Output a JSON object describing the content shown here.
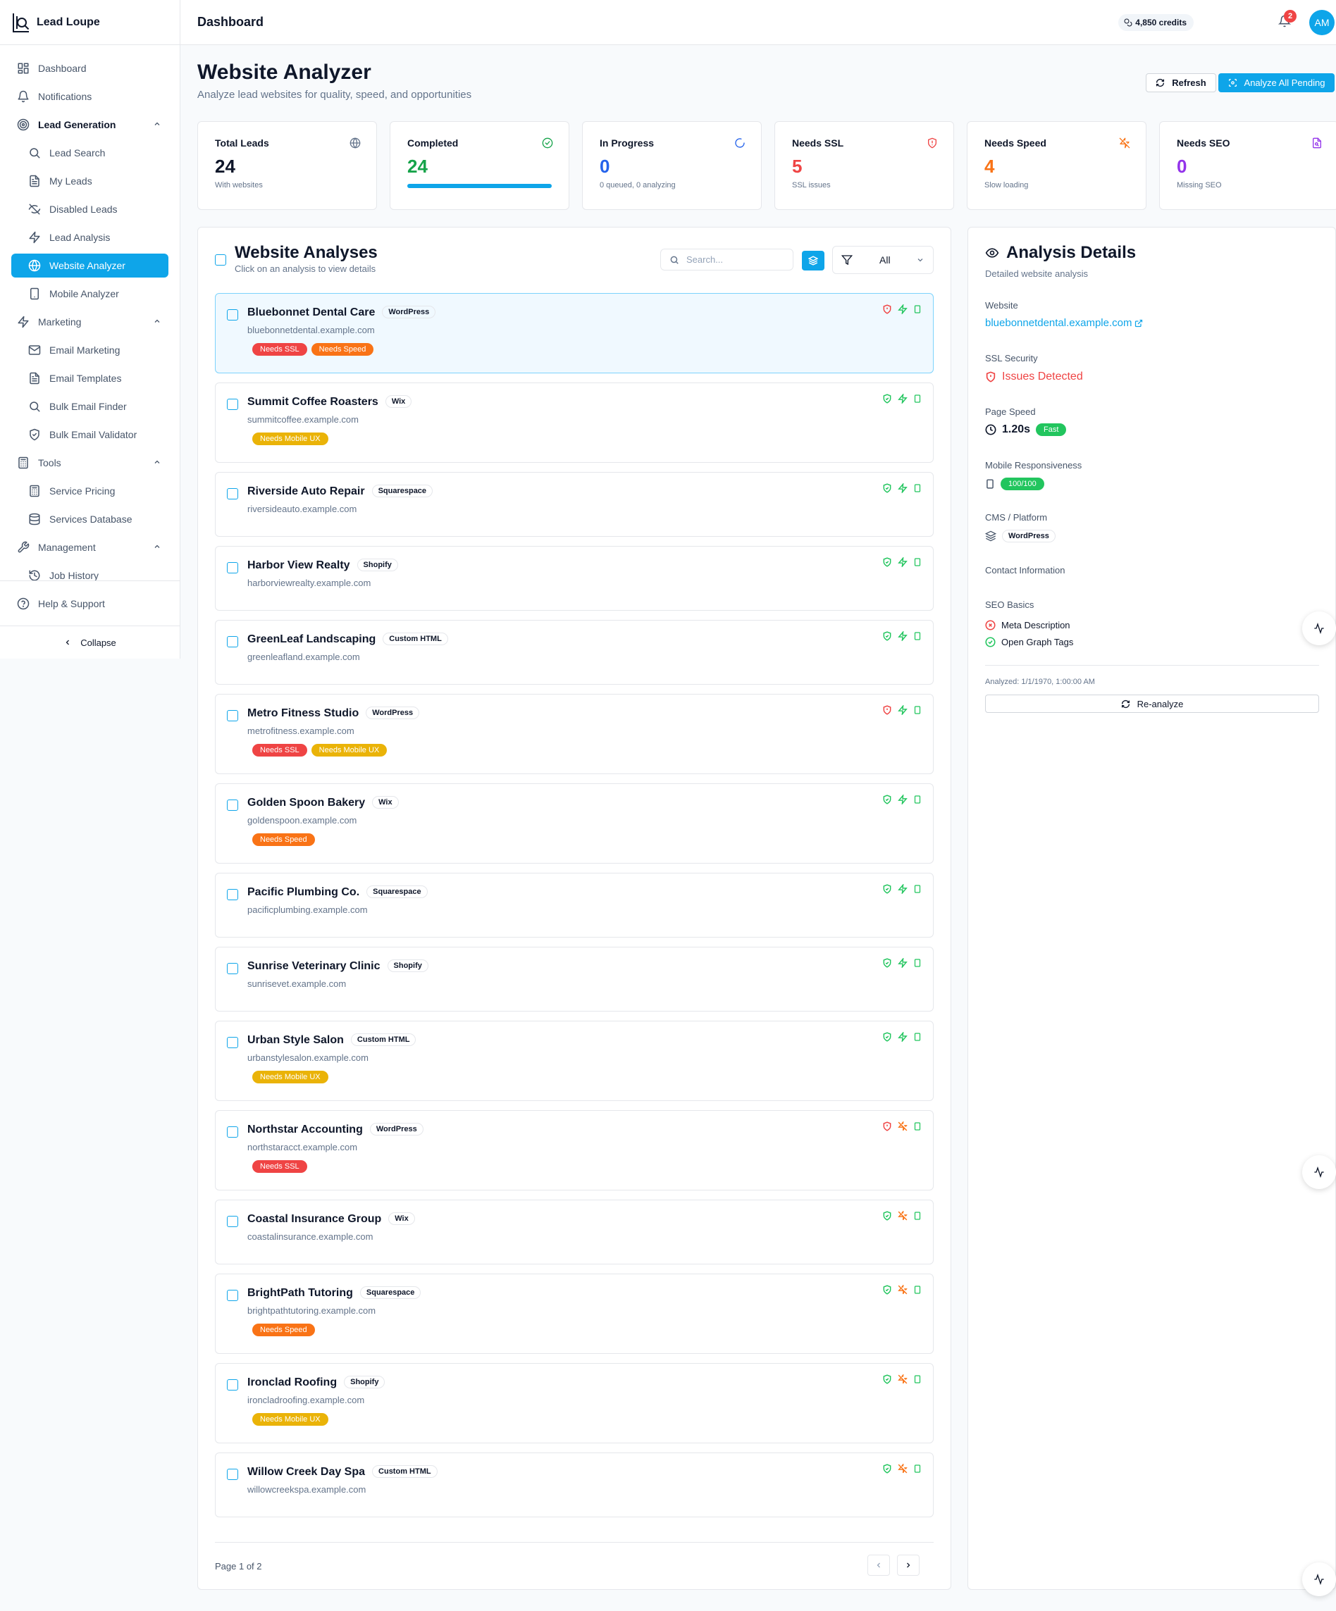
{
  "brand": {
    "name": "Lead Loupe"
  },
  "sidebar": {
    "items": [
      {
        "label": "Dashboard",
        "icon": "dashboard-icon",
        "level": 0
      },
      {
        "label": "Notifications",
        "icon": "bell-icon",
        "level": 0
      },
      {
        "label": "Lead Generation",
        "icon": "target-icon",
        "level": 0,
        "group": true,
        "bold": true
      },
      {
        "label": "Lead Search",
        "icon": "search-icon",
        "level": 1
      },
      {
        "label": "My Leads",
        "icon": "file-icon",
        "level": 1
      },
      {
        "label": "Disabled Leads",
        "icon": "eye-off-icon",
        "level": 1
      },
      {
        "label": "Lead Analysis",
        "icon": "zap-icon",
        "level": 1
      },
      {
        "label": "Website Analyzer",
        "icon": "globe-icon",
        "level": 1,
        "active": true
      },
      {
        "label": "Mobile Analyzer",
        "icon": "smartphone-icon",
        "level": 1
      },
      {
        "label": "Marketing",
        "icon": "zap-icon",
        "level": 0,
        "group": true
      },
      {
        "label": "Email Marketing",
        "icon": "mail-icon",
        "level": 1
      },
      {
        "label": "Email Templates",
        "icon": "file-icon",
        "level": 1
      },
      {
        "label": "Bulk Email Finder",
        "icon": "search-icon",
        "level": 1
      },
      {
        "label": "Bulk Email Validator",
        "icon": "shield-check-icon",
        "level": 1
      },
      {
        "label": "Tools",
        "icon": "calculator-icon",
        "level": 0,
        "group": true
      },
      {
        "label": "Service Pricing",
        "icon": "calculator-icon",
        "level": 1
      },
      {
        "label": "Services Database",
        "icon": "database-icon",
        "level": 1
      },
      {
        "label": "Management",
        "icon": "wrench-icon",
        "level": 0,
        "group": true
      },
      {
        "label": "Job History",
        "icon": "history-icon",
        "level": 1
      }
    ],
    "help": "Help & Support",
    "collapse": "Collapse"
  },
  "topbar": {
    "title": "Dashboard",
    "credits": "4,850 credits",
    "notif_count": "2",
    "avatar": "AM"
  },
  "header": {
    "title": "Website Analyzer",
    "subtitle": "Analyze lead websites for quality, speed, and opportunities",
    "refresh": "Refresh",
    "analyze_all": "Analyze All Pending"
  },
  "stats": [
    {
      "label": "Total Leads",
      "value": "24",
      "note": "With websites",
      "color": "#0f172a",
      "icon": "globe-icon"
    },
    {
      "label": "Completed",
      "value": "24",
      "note": "",
      "color": "#16a34a",
      "icon": "check-circle-icon",
      "progress": 1.0
    },
    {
      "label": "In Progress",
      "value": "0",
      "note": "0 queued, 0 analyzing",
      "color": "#2563eb",
      "icon": "loader-icon"
    },
    {
      "label": "Needs SSL",
      "value": "5",
      "note": "SSL issues",
      "color": "#ef4444",
      "icon": "shield-alert-icon"
    },
    {
      "label": "Needs Speed",
      "value": "4",
      "note": "Slow loading",
      "color": "#f97316",
      "icon": "zap-off-icon"
    },
    {
      "label": "Needs SEO",
      "value": "0",
      "note": "Missing SEO",
      "color": "#9333ea",
      "icon": "file-search-icon"
    }
  ],
  "analyses": {
    "title": "Website Analyses",
    "subtitle": "Click on an analysis to view details",
    "search_placeholder": "Search...",
    "filter_value": "All",
    "page_info": "Page 1 of 2",
    "rows": [
      {
        "name": "Bluebonnet Dental Care",
        "cms": "WordPress",
        "domain": "bluebonnetdental.example.com",
        "tags": [
          {
            "label": "Needs SSL",
            "color": "red"
          },
          {
            "label": "Needs Speed",
            "color": "orange"
          }
        ],
        "ssl": "bad",
        "speed": "good",
        "selected": true
      },
      {
        "name": "Summit Coffee Roasters",
        "cms": "Wix",
        "domain": "summitcoffee.example.com",
        "tags": [
          {
            "label": "Needs Mobile UX",
            "color": "yellow"
          }
        ],
        "ssl": "good",
        "speed": "good"
      },
      {
        "name": "Riverside Auto Repair",
        "cms": "Squarespace",
        "domain": "riversideauto.example.com",
        "tags": [],
        "ssl": "good",
        "speed": "good"
      },
      {
        "name": "Harbor View Realty",
        "cms": "Shopify",
        "domain": "harborviewrealty.example.com",
        "tags": [],
        "ssl": "good",
        "speed": "good"
      },
      {
        "name": "GreenLeaf Landscaping",
        "cms": "Custom HTML",
        "domain": "greenleafland.example.com",
        "tags": [],
        "ssl": "good",
        "speed": "good"
      },
      {
        "name": "Metro Fitness Studio",
        "cms": "WordPress",
        "domain": "metrofitness.example.com",
        "tags": [
          {
            "label": "Needs SSL",
            "color": "red"
          },
          {
            "label": "Needs Mobile UX",
            "color": "yellow"
          }
        ],
        "ssl": "bad",
        "speed": "good"
      },
      {
        "name": "Golden Spoon Bakery",
        "cms": "Wix",
        "domain": "goldenspoon.example.com",
        "tags": [
          {
            "label": "Needs Speed",
            "color": "orange"
          }
        ],
        "ssl": "good",
        "speed": "good"
      },
      {
        "name": "Pacific Plumbing Co.",
        "cms": "Squarespace",
        "domain": "pacificplumbing.example.com",
        "tags": [],
        "ssl": "good",
        "speed": "good"
      },
      {
        "name": "Sunrise Veterinary Clinic",
        "cms": "Shopify",
        "domain": "sunrisevet.example.com",
        "tags": [],
        "ssl": "good",
        "speed": "good"
      },
      {
        "name": "Urban Style Salon",
        "cms": "Custom HTML",
        "domain": "urbanstylesalon.example.com",
        "tags": [
          {
            "label": "Needs Mobile UX",
            "color": "yellow"
          }
        ],
        "ssl": "good",
        "speed": "good"
      },
      {
        "name": "Northstar Accounting",
        "cms": "WordPress",
        "domain": "northstaracct.example.com",
        "tags": [
          {
            "label": "Needs SSL",
            "color": "red"
          }
        ],
        "ssl": "bad",
        "speed": "bad"
      },
      {
        "name": "Coastal Insurance Group",
        "cms": "Wix",
        "domain": "coastalinsurance.example.com",
        "tags": [],
        "ssl": "good",
        "speed": "bad"
      },
      {
        "name": "BrightPath Tutoring",
        "cms": "Squarespace",
        "domain": "brightpathtutoring.example.com",
        "tags": [
          {
            "label": "Needs Speed",
            "color": "orange"
          }
        ],
        "ssl": "good",
        "speed": "bad"
      },
      {
        "name": "Ironclad Roofing",
        "cms": "Shopify",
        "domain": "ironcladroofing.example.com",
        "tags": [
          {
            "label": "Needs Mobile UX",
            "color": "yellow"
          }
        ],
        "ssl": "good",
        "speed": "bad"
      },
      {
        "name": "Willow Creek Day Spa",
        "cms": "Custom HTML",
        "domain": "willowcreekspa.example.com",
        "tags": [],
        "ssl": "good",
        "speed": "bad"
      }
    ]
  },
  "details": {
    "title": "Analysis Details",
    "subtitle": "Detailed website analysis",
    "website_label": "Website",
    "website": "bluebonnetdental.example.com",
    "ssl_label": "SSL Security",
    "ssl_value": "Issues Detected",
    "speed_label": "Page Speed",
    "speed_value": "1.20s",
    "speed_badge": "Fast",
    "mobile_label": "Mobile Responsiveness",
    "mobile_value": "100/100",
    "cms_label": "CMS / Platform",
    "cms_value": "WordPress",
    "contact_label": "Contact Information",
    "seo_label": "SEO Basics",
    "seo_items": [
      {
        "label": "Meta Description",
        "ok": false
      },
      {
        "label": "Open Graph Tags",
        "ok": true
      }
    ],
    "analyzed": "Analyzed: 1/1/1970, 1:00:00 AM",
    "reanalyze": "Re-analyze"
  }
}
